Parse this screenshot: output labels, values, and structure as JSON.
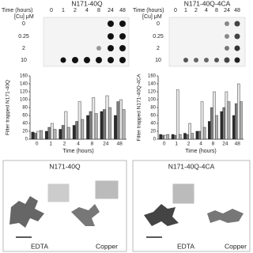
{
  "dot_blots": [
    {
      "title": "N171-40Q",
      "time_label": "Time (hours)",
      "conc_label": "[Cu] μM",
      "times": [
        "0",
        "1",
        "2",
        "4",
        "8",
        "24",
        "48"
      ],
      "concs": [
        "0",
        "0.25",
        "2",
        "10"
      ]
    },
    {
      "title": "N171-40Q-4CA",
      "time_label": "Time (hours)",
      "conc_label": "[Cu] μM",
      "times": [
        "0",
        "1",
        "2",
        "4",
        "8",
        "24",
        "48"
      ],
      "concs": [
        "0",
        "0.25",
        "2",
        "10"
      ]
    }
  ],
  "chart_data": [
    {
      "type": "bar",
      "ylabel": "Filter trapped N171-40Q",
      "xlabel": "Time (hours)",
      "categories": [
        "0",
        "1",
        "2",
        "4",
        "8",
        "24",
        "48"
      ],
      "series": [
        {
          "color": "#2b2b2b",
          "values": [
            18,
            20,
            25,
            35,
            60,
            70,
            60
          ]
        },
        {
          "color": "#7a7a7a",
          "values": [
            15,
            30,
            35,
            45,
            70,
            75,
            95
          ]
        },
        {
          "color": "#e6e6e6",
          "values": [
            20,
            40,
            70,
            95,
            105,
            110,
            100
          ]
        },
        {
          "color": "#b0b0b0",
          "values": [
            22,
            25,
            30,
            50,
            65,
            80,
            75
          ]
        }
      ],
      "ylim": [
        0,
        160
      ],
      "yticks": [
        0,
        20,
        40,
        60,
        80,
        100,
        120,
        140,
        160
      ]
    },
    {
      "type": "bar",
      "ylabel": "Filter trapped N171-40Q-4CA",
      "xlabel": "Time (hours)",
      "categories": [
        "0",
        "1",
        "2",
        "4",
        "8",
        "24",
        "48"
      ],
      "series": [
        {
          "color": "#2b2b2b",
          "values": [
            12,
            12,
            15,
            20,
            45,
            70,
            60
          ]
        },
        {
          "color": "#7a7a7a",
          "values": [
            10,
            10,
            12,
            20,
            80,
            80,
            90
          ]
        },
        {
          "color": "#e6e6e6",
          "values": [
            10,
            125,
            40,
            95,
            120,
            120,
            140
          ]
        },
        {
          "color": "#b0b0b0",
          "values": [
            12,
            12,
            15,
            30,
            60,
            95,
            95
          ]
        }
      ],
      "ylim": [
        0,
        160
      ],
      "yticks": [
        0,
        20,
        40,
        60,
        80,
        100,
        120,
        140,
        160
      ]
    }
  ],
  "micrographs": [
    {
      "title": "N171-40Q",
      "labels": [
        "EDTA",
        "Copper"
      ]
    },
    {
      "title": "N171-40Q-4CA",
      "labels": [
        "EDTA",
        "Copper"
      ]
    }
  ]
}
